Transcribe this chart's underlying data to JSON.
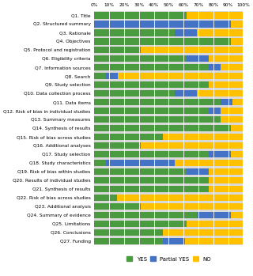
{
  "categories": [
    "Q1. Title",
    "Q2. Structured summary",
    "Q3. Rationale",
    "Q4. Objectives",
    "Q5. Protocol and registration",
    "Q6. Eligibility criteria",
    "Q7. Information sources",
    "Q8. Search",
    "Q9. Study selection",
    "Q10. Data collection process",
    "Q11. Data items",
    "Q12. Risk of bias in individual studies",
    "Q13. Summary measures",
    "Q14. Synthesis of results",
    "Q15. Risk of bias across studies",
    "Q16. Additional analyses",
    "Q17. Study selection",
    "Q18. Study characteristics",
    "Q19. Risk of bias within studies",
    "Q20. Results of individual studies",
    "Q21. Synthesis of results",
    "Q22. Risk of bias across studies",
    "Q23. Additional analysis",
    "Q24. Summary of evidence",
    "Q25. Limitations",
    "Q26. Conclusions",
    "Q27. Funding"
  ],
  "yes": [
    62,
    0,
    54,
    92,
    31,
    62,
    77,
    8,
    77,
    54,
    85,
    77,
    85,
    92,
    46,
    31,
    77,
    8,
    62,
    77,
    77,
    15,
    31,
    69,
    62,
    46,
    46
  ],
  "partial_yes": [
    0,
    92,
    15,
    0,
    0,
    15,
    8,
    8,
    0,
    15,
    8,
    8,
    0,
    0,
    0,
    0,
    15,
    46,
    15,
    0,
    0,
    0,
    0,
    23,
    0,
    0,
    15
  ],
  "no": [
    38,
    8,
    31,
    8,
    69,
    23,
    15,
    84,
    23,
    31,
    7,
    15,
    15,
    8,
    54,
    69,
    8,
    46,
    23,
    23,
    23,
    85,
    69,
    8,
    38,
    54,
    39
  ],
  "yes_color": "#4a9a3f",
  "partial_yes_color": "#4472c4",
  "no_color": "#ffc000",
  "bar_background": "#d9d9d9"
}
